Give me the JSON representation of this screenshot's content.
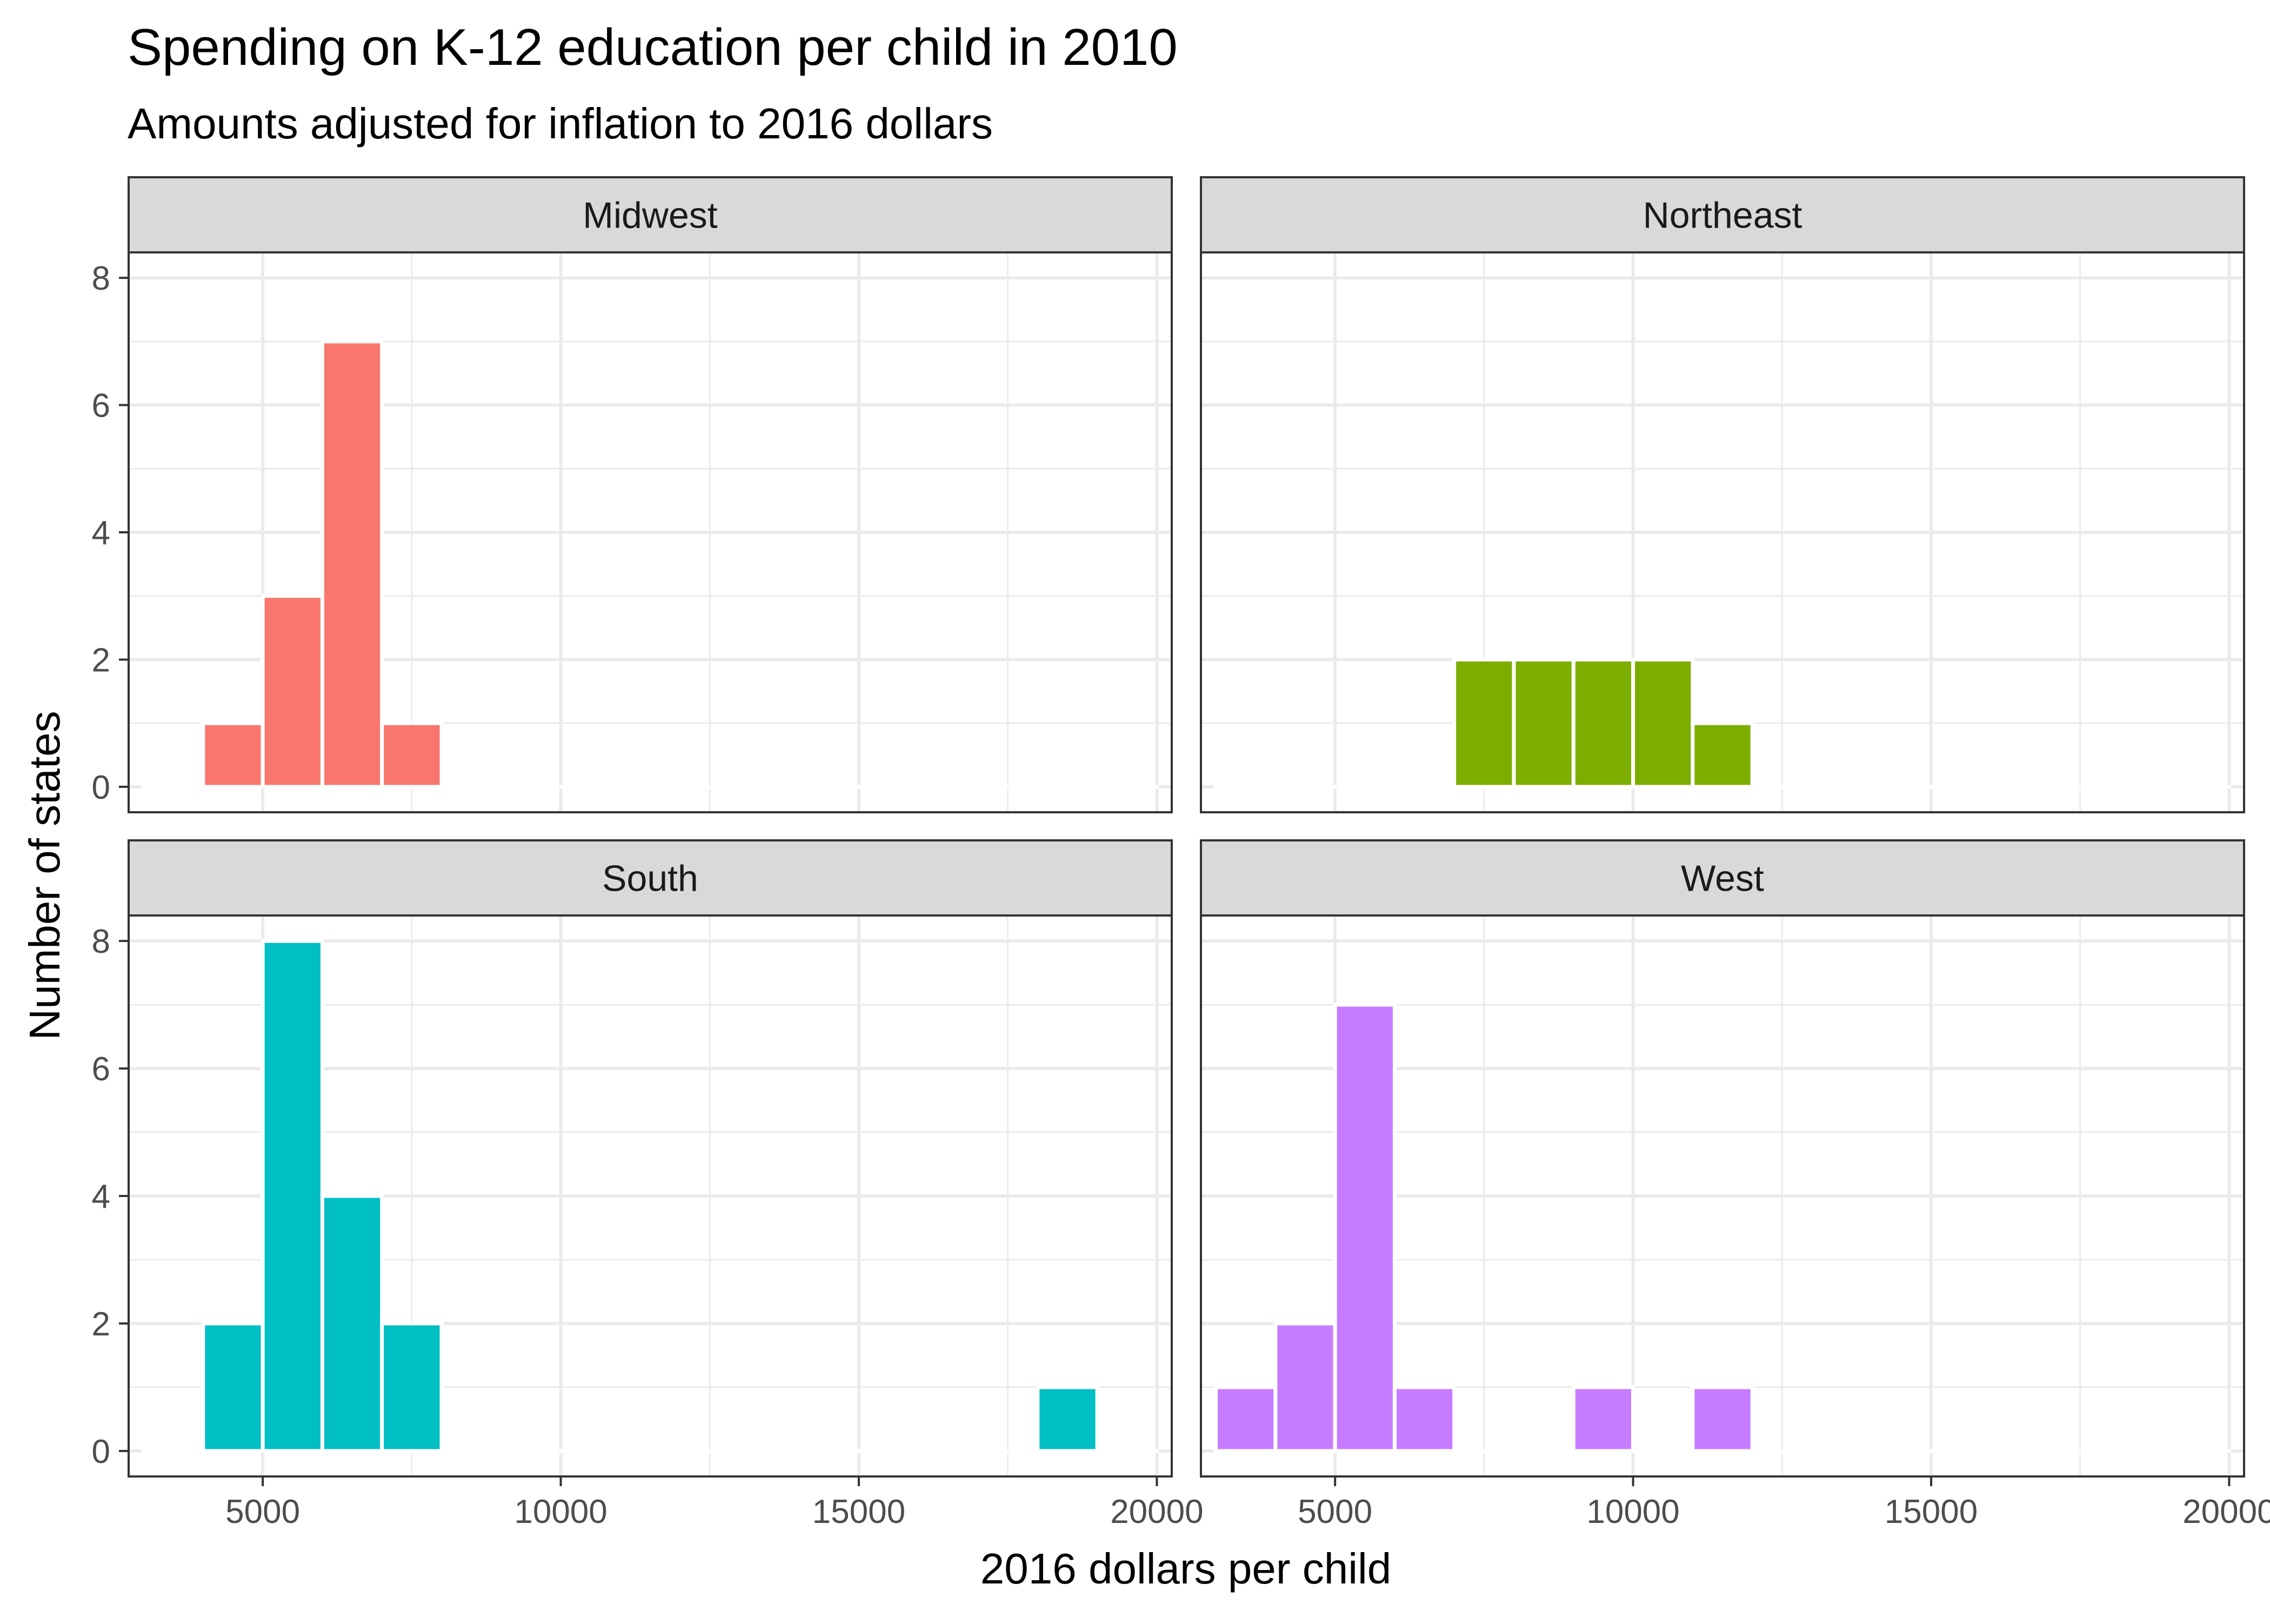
{
  "chart_data": {
    "type": "bar",
    "title": "Spending on K-12 education per child in 2010",
    "subtitle": "Amounts adjusted for inflation to 2016 dollars",
    "xlabel": "2016 dollars per child",
    "ylabel": "Number of states",
    "xlim": [
      2750,
      20250
    ],
    "ylim": [
      -0.4,
      8.4
    ],
    "x_ticks": [
      5000,
      10000,
      15000,
      20000
    ],
    "y_ticks": [
      0,
      2,
      4,
      6,
      8
    ],
    "bin_width": 1000,
    "grid": true,
    "facets": [
      {
        "name": "Midwest",
        "color": "#F8766D",
        "bins": [
          3500,
          4500,
          5500,
          6500,
          7500,
          8500,
          9500,
          10500,
          11500,
          12500,
          13500,
          14500,
          15500,
          16500,
          17500,
          18500,
          19500
        ],
        "counts": [
          0,
          1,
          3,
          7,
          1,
          0,
          0,
          0,
          0,
          0,
          0,
          0,
          0,
          0,
          0,
          0,
          0
        ]
      },
      {
        "name": "Northeast",
        "color": "#7CAE00",
        "bins": [
          3500,
          4500,
          5500,
          6500,
          7500,
          8500,
          9500,
          10500,
          11500,
          12500,
          13500,
          14500,
          15500,
          16500,
          17500,
          18500,
          19500
        ],
        "counts": [
          0,
          0,
          0,
          0,
          2,
          2,
          2,
          2,
          1,
          0,
          0,
          0,
          0,
          0,
          0,
          0,
          0
        ]
      },
      {
        "name": "South",
        "color": "#00BFC4",
        "bins": [
          3500,
          4500,
          5500,
          6500,
          7500,
          8500,
          9500,
          10500,
          11500,
          12500,
          13500,
          14500,
          15500,
          16500,
          17500,
          18500,
          19500
        ],
        "counts": [
          0,
          2,
          8,
          4,
          2,
          0,
          0,
          0,
          0,
          0,
          0,
          0,
          0,
          0,
          0,
          1,
          0
        ]
      },
      {
        "name": "West",
        "color": "#C77CFF",
        "bins": [
          3500,
          4500,
          5500,
          6500,
          7500,
          8500,
          9500,
          10500,
          11500,
          12500,
          13500,
          14500,
          15500,
          16500,
          17500,
          18500,
          19500
        ],
        "counts": [
          1,
          2,
          7,
          1,
          0,
          0,
          1,
          0,
          1,
          0,
          0,
          0,
          0,
          0,
          0,
          0,
          0
        ]
      }
    ]
  }
}
